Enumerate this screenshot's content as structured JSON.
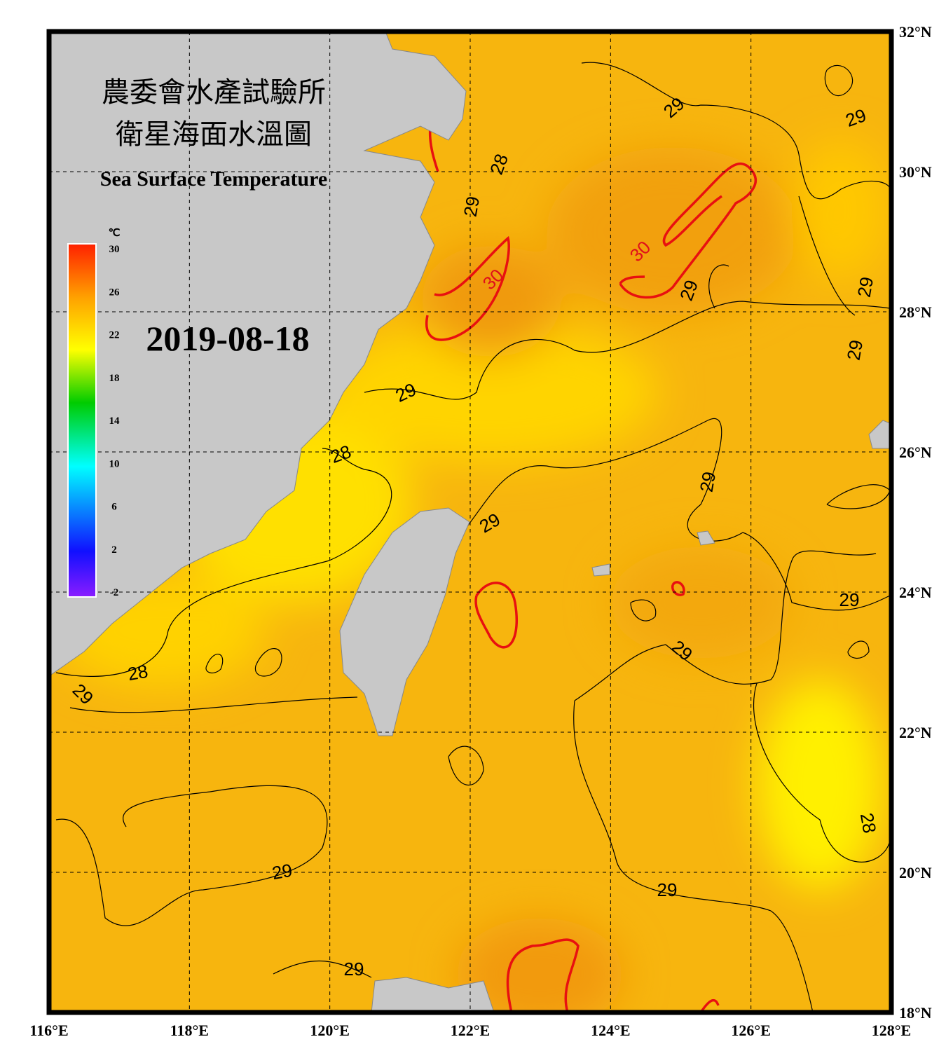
{
  "header": {
    "title_line1": "農委會水產試驗所",
    "title_line2": "衛星海面水溫圖",
    "subtitle": "Sea Surface Temperature",
    "date": "2019-08-18"
  },
  "colorbar": {
    "unit": "℃",
    "range": [
      -2,
      30
    ],
    "ticks": [
      30,
      26,
      22,
      18,
      14,
      10,
      6,
      2,
      -2
    ]
  },
  "map": {
    "lon_range": [
      116,
      128
    ],
    "lat_range": [
      18,
      32
    ],
    "lon_ticks": [
      {
        "value": 116,
        "label": "116°E"
      },
      {
        "value": 118,
        "label": "118°E"
      },
      {
        "value": 120,
        "label": "120°E"
      },
      {
        "value": 122,
        "label": "122°E"
      },
      {
        "value": 124,
        "label": "124°E"
      },
      {
        "value": 126,
        "label": "126°E"
      },
      {
        "value": 128,
        "label": "128°E"
      }
    ],
    "lat_ticks": [
      {
        "value": 32,
        "label": "32°N"
      },
      {
        "value": 30,
        "label": "30°N"
      },
      {
        "value": 28,
        "label": "28°N"
      },
      {
        "value": 26,
        "label": "26°N"
      },
      {
        "value": 24,
        "label": "24°N"
      },
      {
        "value": 22,
        "label": "22°N"
      },
      {
        "value": 20,
        "label": "20°N"
      },
      {
        "value": 18,
        "label": "18°N"
      }
    ],
    "contour_labels": [
      "29",
      "29",
      "28",
      "29",
      "30",
      "30",
      "29",
      "29",
      "29",
      "29",
      "28",
      "29",
      "29",
      "29",
      "29",
      "28",
      "29",
      "28",
      "29",
      "29",
      "29"
    ]
  }
}
